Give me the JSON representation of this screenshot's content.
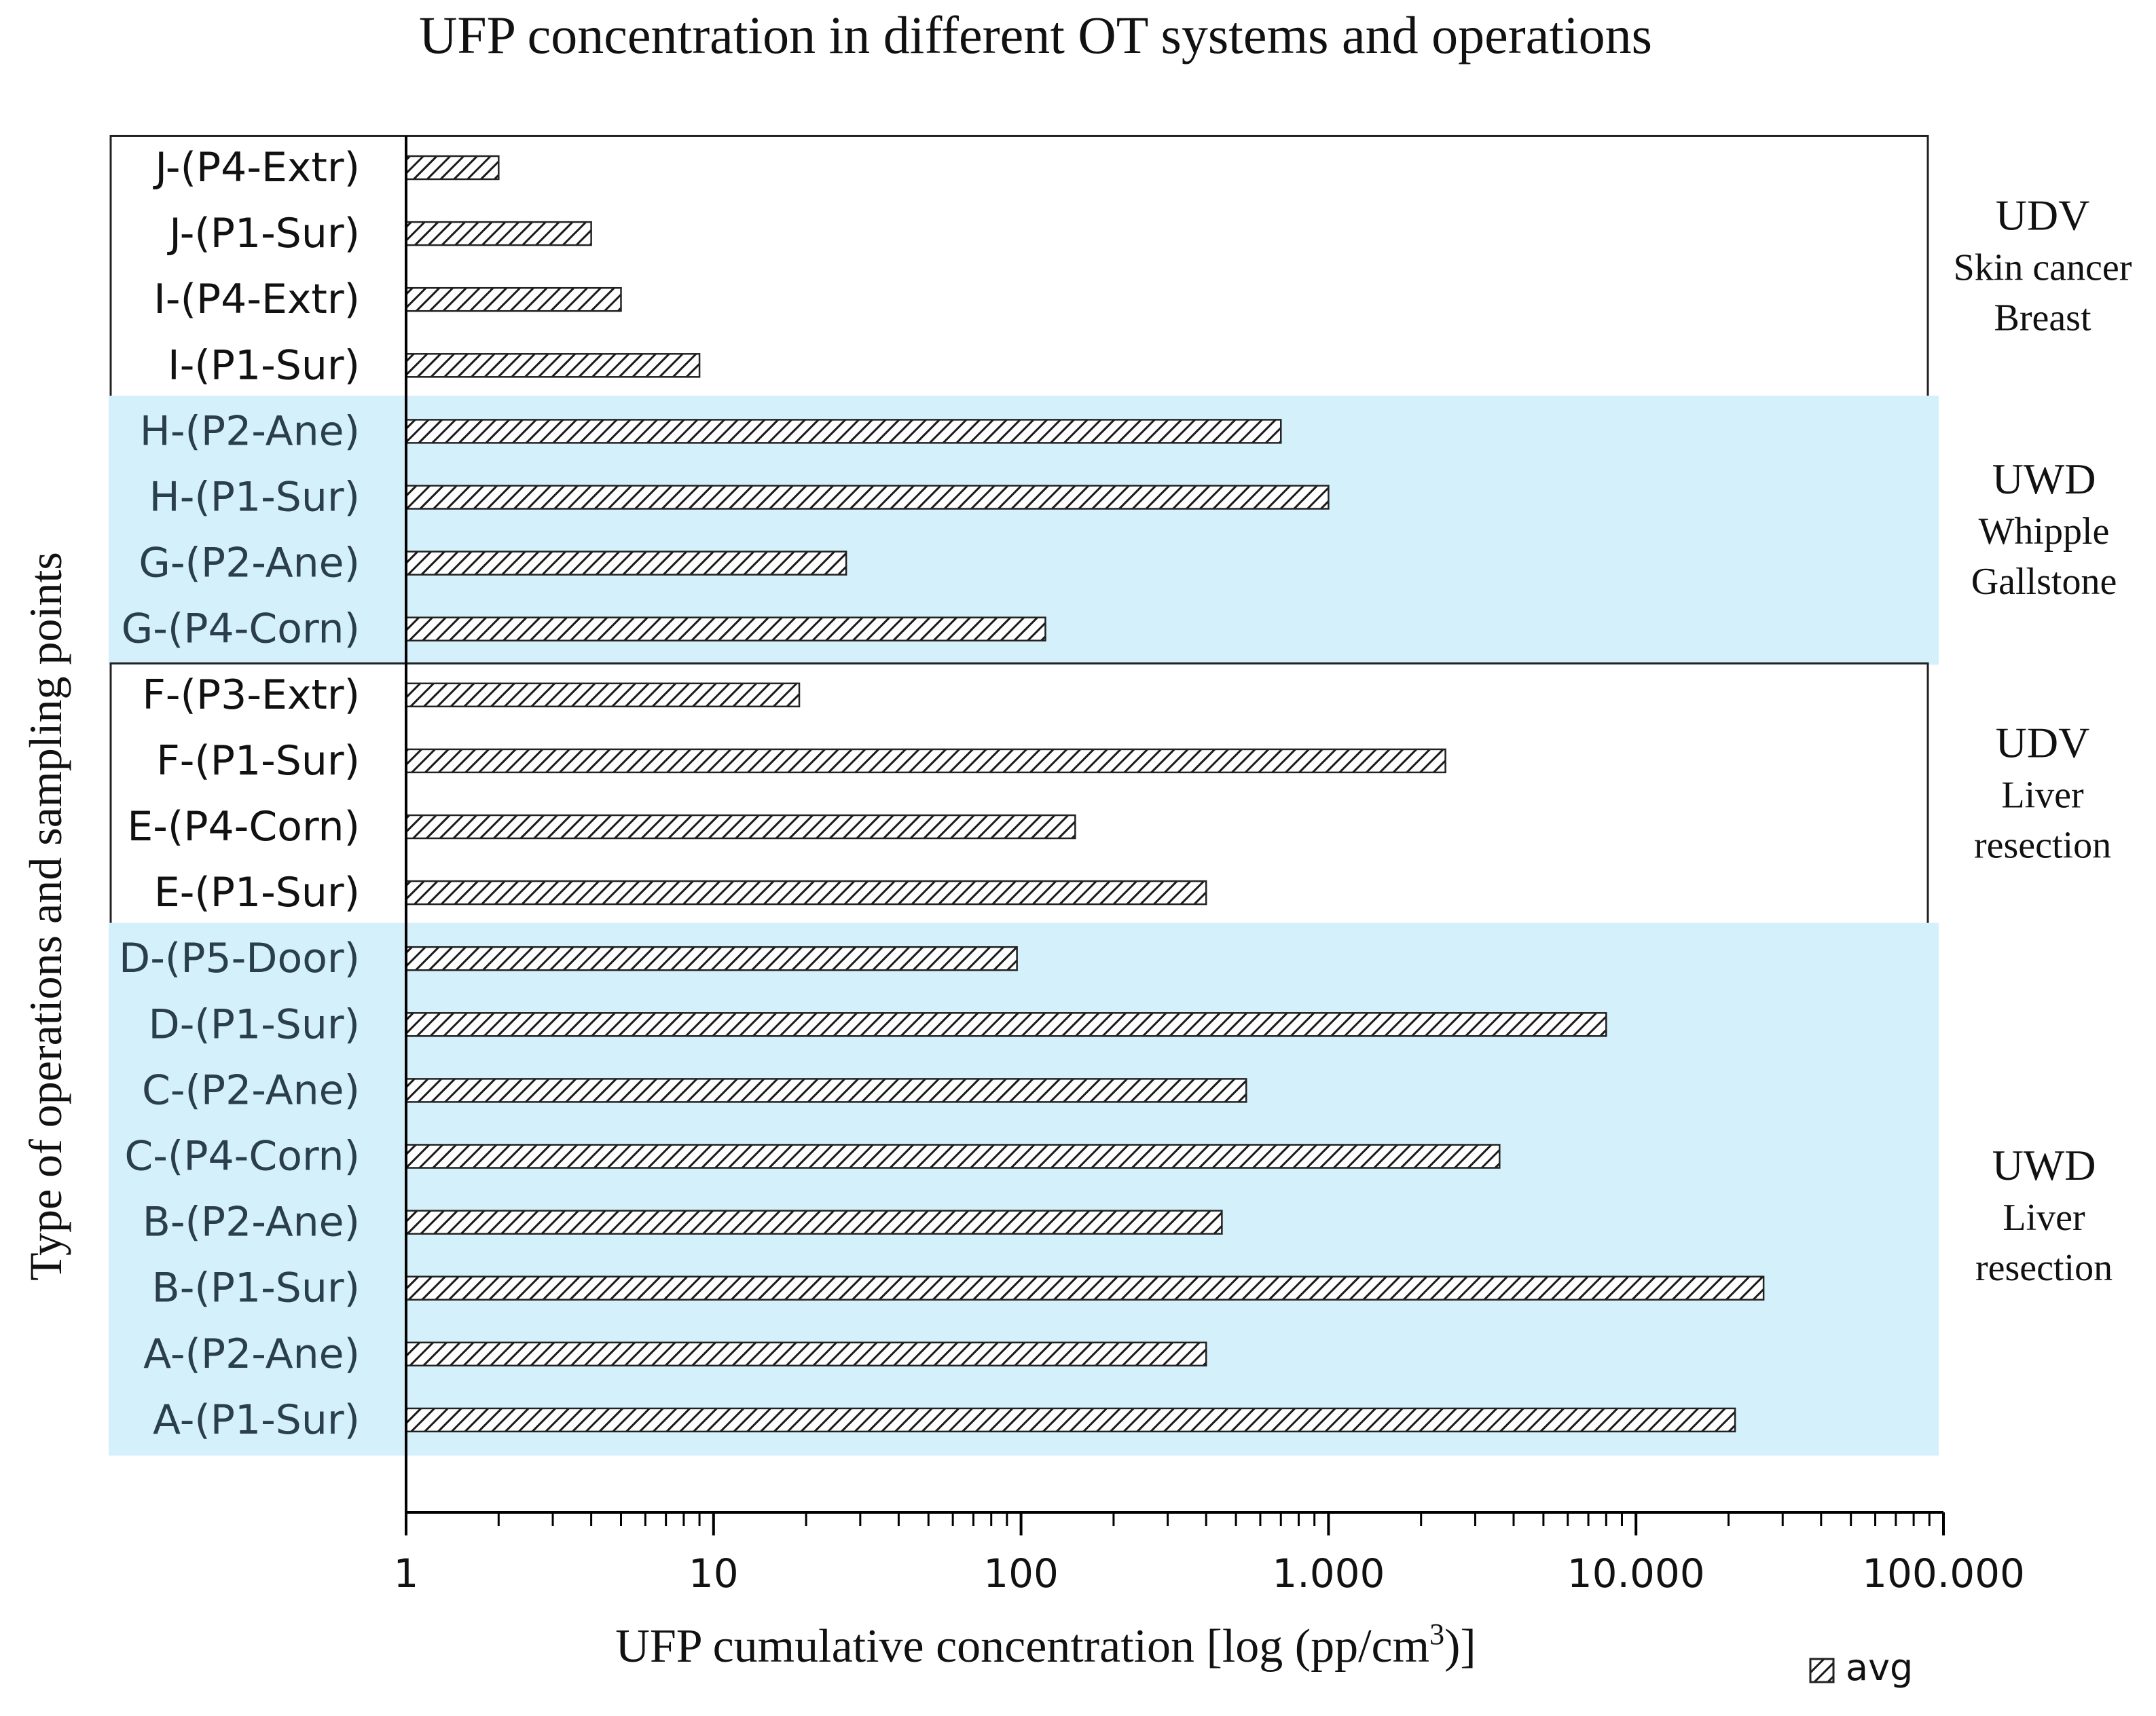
{
  "chart_data": {
    "type": "bar",
    "orientation": "horizontal",
    "title": "UFP concentration in different OT systems and operations",
    "xlabel": "UFP cumulative concentration [log (pp/cm",
    "xlabel_sup": "3",
    "xlabel_tail": ")]",
    "ylabel": "Type of operations and sampling points",
    "xscale": "log",
    "xlim": [
      1,
      100000
    ],
    "x_ticks": [
      {
        "value": 1,
        "label": "1"
      },
      {
        "value": 10,
        "label": "10"
      },
      {
        "value": 100,
        "label": "100"
      },
      {
        "value": 1000,
        "label": "1.000"
      },
      {
        "value": 10000,
        "label": "10.000"
      },
      {
        "value": 100000,
        "label": "100.000"
      }
    ],
    "series": [
      {
        "name": "avg",
        "pattern": "diagonal-hatch",
        "values": [
          2,
          4,
          5,
          9,
          700,
          1000,
          27,
          120,
          19,
          2400,
          150,
          400,
          97,
          8000,
          540,
          3600,
          450,
          26000,
          400,
          21000
        ]
      }
    ],
    "categories": [
      "J-(P4-Extr)",
      "J-(P1-Sur)",
      "I-(P4-Extr)",
      "I-(P1-Sur)",
      "H-(P2-Ane)",
      "H-(P1-Sur)",
      "G-(P2-Ane)",
      "G-(P4-Corn)",
      "F-(P3-Extr)",
      "F-(P1-Sur)",
      "E-(P4-Corn)",
      "E-(P1-Sur)",
      "D-(P5-Door)",
      "D-(P1-Sur)",
      "C-(P2-Ane)",
      "C-(P4-Corn)",
      "B-(P2-Ane)",
      "B-(P1-Sur)",
      "A-(P2-Ane)",
      "A-(P1-Sur)"
    ],
    "groups": [
      {
        "lines": [
          "UDV",
          "Skin cancer",
          "Breast"
        ],
        "style": "outlined",
        "from": 0,
        "to": 3
      },
      {
        "lines": [
          "UWD",
          "Whipple",
          "Gallstone"
        ],
        "style": "shaded",
        "from": 4,
        "to": 7
      },
      {
        "lines": [
          "UDV",
          "Liver",
          "resection"
        ],
        "style": "outlined",
        "from": 8,
        "to": 11
      },
      {
        "lines": [
          "UWD",
          "Liver",
          "resection"
        ],
        "style": "shaded",
        "from": 12,
        "to": 19
      }
    ],
    "legend": {
      "position": "bottom-right",
      "entries": [
        "avg"
      ]
    },
    "grid": false
  },
  "colors": {
    "group_shading": "#d4f0fb",
    "category_label_shaded": "#2a3e4c",
    "text": "#111111",
    "bar_stroke": "#222222",
    "axis": "#000000"
  }
}
